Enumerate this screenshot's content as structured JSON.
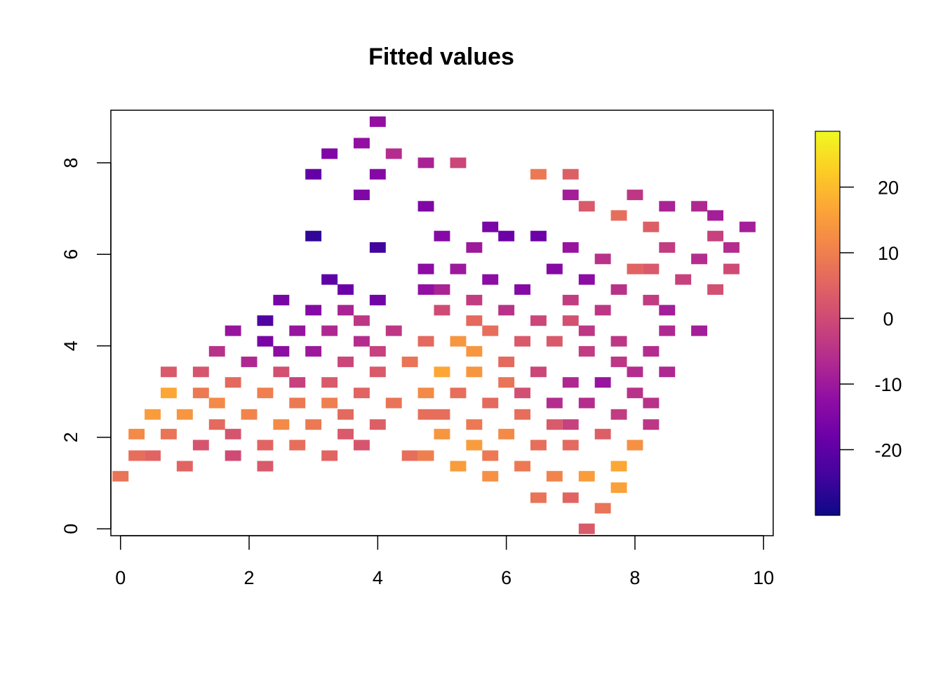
{
  "chart_data": {
    "type": "heatmap",
    "title": "Fitted values",
    "xlabel": "",
    "ylabel": "",
    "xlim": [
      -0.15,
      10.15
    ],
    "ylim": [
      -0.15,
      9.15
    ],
    "x_ticks": [
      "0",
      "2",
      "4",
      "6",
      "8",
      "10"
    ],
    "y_ticks": [
      "0",
      "2",
      "4",
      "6",
      "8"
    ],
    "cell_width": 0.25,
    "cell_height": 0.23,
    "colorbar": {
      "min": -30,
      "max": 28.5,
      "ticks": [
        "20",
        "10",
        "0",
        "-10",
        "-20"
      ],
      "palette": "plasma"
    },
    "cells": [
      {
        "x": 0.0,
        "y": 1.15,
        "value": 8
      },
      {
        "x": 0.25,
        "y": 1.6,
        "value": 7
      },
      {
        "x": 0.5,
        "y": 1.6,
        "value": 5
      },
      {
        "x": 0.25,
        "y": 2.07,
        "value": 12
      },
      {
        "x": 0.5,
        "y": 2.5,
        "value": 15
      },
      {
        "x": 0.75,
        "y": 2.07,
        "value": 8
      },
      {
        "x": 0.75,
        "y": 2.97,
        "value": 17
      },
      {
        "x": 0.75,
        "y": 3.43,
        "value": 3
      },
      {
        "x": 1.0,
        "y": 1.37,
        "value": 5
      },
      {
        "x": 1.0,
        "y": 2.5,
        "value": 14
      },
      {
        "x": 1.25,
        "y": 1.83,
        "value": 2
      },
      {
        "x": 1.25,
        "y": 2.97,
        "value": 9
      },
      {
        "x": 1.25,
        "y": 3.43,
        "value": 2
      },
      {
        "x": 1.5,
        "y": 2.28,
        "value": 6
      },
      {
        "x": 1.5,
        "y": 2.75,
        "value": 12
      },
      {
        "x": 1.5,
        "y": 3.88,
        "value": -5
      },
      {
        "x": 1.75,
        "y": 1.6,
        "value": 0
      },
      {
        "x": 1.75,
        "y": 2.07,
        "value": 2
      },
      {
        "x": 1.75,
        "y": 3.2,
        "value": 6
      },
      {
        "x": 1.75,
        "y": 4.33,
        "value": -11
      },
      {
        "x": 2.0,
        "y": 2.5,
        "value": 11
      },
      {
        "x": 2.0,
        "y": 3.65,
        "value": -7
      },
      {
        "x": 2.25,
        "y": 1.37,
        "value": 3
      },
      {
        "x": 2.25,
        "y": 1.83,
        "value": 5
      },
      {
        "x": 2.25,
        "y": 2.97,
        "value": 10
      },
      {
        "x": 2.25,
        "y": 4.1,
        "value": -16
      },
      {
        "x": 2.25,
        "y": 4.55,
        "value": -22
      },
      {
        "x": 2.5,
        "y": 2.28,
        "value": 12
      },
      {
        "x": 2.5,
        "y": 3.43,
        "value": 1
      },
      {
        "x": 2.5,
        "y": 3.88,
        "value": -13
      },
      {
        "x": 2.5,
        "y": 5.0,
        "value": -16
      },
      {
        "x": 2.75,
        "y": 1.83,
        "value": 7
      },
      {
        "x": 2.75,
        "y": 2.75,
        "value": 9
      },
      {
        "x": 2.75,
        "y": 3.2,
        "value": -2
      },
      {
        "x": 2.75,
        "y": 4.33,
        "value": -11
      },
      {
        "x": 3.0,
        "y": 2.28,
        "value": 9
      },
      {
        "x": 3.0,
        "y": 3.88,
        "value": -10
      },
      {
        "x": 3.0,
        "y": 4.78,
        "value": -14
      },
      {
        "x": 3.0,
        "y": 6.4,
        "value": -26
      },
      {
        "x": 3.0,
        "y": 7.75,
        "value": -19
      },
      {
        "x": 3.25,
        "y": 1.6,
        "value": 5
      },
      {
        "x": 3.25,
        "y": 2.75,
        "value": 10
      },
      {
        "x": 3.25,
        "y": 3.2,
        "value": 3
      },
      {
        "x": 3.25,
        "y": 4.33,
        "value": -7
      },
      {
        "x": 3.25,
        "y": 5.45,
        "value": -20
      },
      {
        "x": 3.25,
        "y": 8.2,
        "value": -15
      },
      {
        "x": 3.5,
        "y": 2.07,
        "value": 3
      },
      {
        "x": 3.5,
        "y": 2.5,
        "value": 6
      },
      {
        "x": 3.5,
        "y": 3.65,
        "value": -1
      },
      {
        "x": 3.5,
        "y": 4.78,
        "value": -8
      },
      {
        "x": 3.5,
        "y": 5.23,
        "value": -18
      },
      {
        "x": 3.75,
        "y": 1.83,
        "value": 2
      },
      {
        "x": 3.75,
        "y": 2.97,
        "value": 5
      },
      {
        "x": 3.75,
        "y": 4.1,
        "value": -6
      },
      {
        "x": 3.75,
        "y": 4.55,
        "value": -4
      },
      {
        "x": 3.75,
        "y": 7.3,
        "value": -15
      },
      {
        "x": 3.75,
        "y": 8.43,
        "value": -12
      },
      {
        "x": 4.0,
        "y": 2.28,
        "value": 4
      },
      {
        "x": 4.0,
        "y": 3.43,
        "value": 3
      },
      {
        "x": 4.0,
        "y": 3.88,
        "value": -2
      },
      {
        "x": 4.0,
        "y": 5.0,
        "value": -17
      },
      {
        "x": 4.0,
        "y": 6.15,
        "value": -24
      },
      {
        "x": 4.0,
        "y": 7.75,
        "value": -14
      },
      {
        "x": 4.0,
        "y": 8.9,
        "value": -12
      },
      {
        "x": 4.25,
        "y": 2.75,
        "value": 8
      },
      {
        "x": 4.25,
        "y": 4.33,
        "value": -4
      },
      {
        "x": 4.25,
        "y": 8.2,
        "value": -6
      },
      {
        "x": 4.5,
        "y": 1.6,
        "value": 7
      },
      {
        "x": 4.5,
        "y": 3.65,
        "value": 8
      },
      {
        "x": 4.75,
        "y": 1.6,
        "value": 10
      },
      {
        "x": 4.75,
        "y": 2.5,
        "value": 7
      },
      {
        "x": 4.75,
        "y": 2.97,
        "value": 12
      },
      {
        "x": 4.75,
        "y": 4.1,
        "value": 6
      },
      {
        "x": 4.75,
        "y": 5.23,
        "value": -12
      },
      {
        "x": 4.75,
        "y": 5.68,
        "value": -13
      },
      {
        "x": 4.75,
        "y": 7.05,
        "value": -15
      },
      {
        "x": 4.75,
        "y": 8.0,
        "value": -8
      },
      {
        "x": 5.0,
        "y": 2.07,
        "value": 14
      },
      {
        "x": 5.0,
        "y": 2.5,
        "value": 7
      },
      {
        "x": 5.0,
        "y": 3.43,
        "value": 17
      },
      {
        "x": 5.0,
        "y": 4.78,
        "value": 0
      },
      {
        "x": 5.0,
        "y": 5.23,
        "value": -8
      },
      {
        "x": 5.0,
        "y": 6.4,
        "value": -14
      },
      {
        "x": 5.25,
        "y": 1.37,
        "value": 15
      },
      {
        "x": 5.25,
        "y": 2.97,
        "value": 7
      },
      {
        "x": 5.25,
        "y": 4.1,
        "value": 14
      },
      {
        "x": 5.25,
        "y": 5.68,
        "value": -10
      },
      {
        "x": 5.25,
        "y": 8.0,
        "value": -1
      },
      {
        "x": 5.5,
        "y": 1.83,
        "value": 15
      },
      {
        "x": 5.5,
        "y": 2.28,
        "value": 9
      },
      {
        "x": 5.5,
        "y": 3.43,
        "value": 14
      },
      {
        "x": 5.5,
        "y": 3.88,
        "value": 14
      },
      {
        "x": 5.5,
        "y": 4.55,
        "value": 6
      },
      {
        "x": 5.5,
        "y": 5.0,
        "value": -3
      },
      {
        "x": 5.5,
        "y": 6.15,
        "value": -10
      },
      {
        "x": 5.75,
        "y": 1.15,
        "value": 13
      },
      {
        "x": 5.75,
        "y": 1.6,
        "value": 9
      },
      {
        "x": 5.75,
        "y": 2.75,
        "value": 6
      },
      {
        "x": 5.75,
        "y": 4.33,
        "value": 7
      },
      {
        "x": 5.75,
        "y": 5.45,
        "value": -13
      },
      {
        "x": 5.75,
        "y": 6.6,
        "value": -16
      },
      {
        "x": 6.0,
        "y": 2.07,
        "value": 12
      },
      {
        "x": 6.0,
        "y": 3.2,
        "value": 8
      },
      {
        "x": 6.0,
        "y": 3.65,
        "value": 6
      },
      {
        "x": 6.0,
        "y": 4.78,
        "value": -5
      },
      {
        "x": 6.0,
        "y": 6.4,
        "value": -18
      },
      {
        "x": 6.25,
        "y": 1.37,
        "value": 9
      },
      {
        "x": 6.25,
        "y": 2.5,
        "value": 7
      },
      {
        "x": 6.25,
        "y": 2.97,
        "value": 1
      },
      {
        "x": 6.25,
        "y": 4.1,
        "value": 3
      },
      {
        "x": 6.25,
        "y": 5.23,
        "value": -14
      },
      {
        "x": 6.5,
        "y": 0.68,
        "value": 8
      },
      {
        "x": 6.5,
        "y": 1.83,
        "value": 7
      },
      {
        "x": 6.5,
        "y": 3.43,
        "value": -1
      },
      {
        "x": 6.5,
        "y": 4.55,
        "value": -1
      },
      {
        "x": 6.5,
        "y": 6.4,
        "value": -18
      },
      {
        "x": 6.5,
        "y": 7.75,
        "value": 9
      },
      {
        "x": 6.75,
        "y": 1.15,
        "value": 11
      },
      {
        "x": 6.75,
        "y": 2.28,
        "value": 3
      },
      {
        "x": 6.75,
        "y": 2.75,
        "value": -6
      },
      {
        "x": 6.75,
        "y": 4.1,
        "value": 3
      },
      {
        "x": 6.75,
        "y": 5.68,
        "value": -14
      },
      {
        "x": 7.0,
        "y": 0.68,
        "value": 5
      },
      {
        "x": 7.0,
        "y": 1.83,
        "value": 6
      },
      {
        "x": 7.0,
        "y": 2.28,
        "value": -2
      },
      {
        "x": 7.0,
        "y": 3.2,
        "value": -7
      },
      {
        "x": 7.0,
        "y": 4.55,
        "value": 1
      },
      {
        "x": 7.0,
        "y": 5.0,
        "value": -3
      },
      {
        "x": 7.0,
        "y": 6.15,
        "value": -11
      },
      {
        "x": 7.0,
        "y": 7.3,
        "value": -9
      },
      {
        "x": 7.0,
        "y": 7.75,
        "value": 4
      },
      {
        "x": 7.25,
        "y": 0.0,
        "value": 3
      },
      {
        "x": 7.25,
        "y": 1.15,
        "value": 15
      },
      {
        "x": 7.25,
        "y": 2.75,
        "value": -6
      },
      {
        "x": 7.25,
        "y": 3.88,
        "value": -3
      },
      {
        "x": 7.25,
        "y": 4.33,
        "value": -4
      },
      {
        "x": 7.25,
        "y": 5.45,
        "value": -13
      },
      {
        "x": 7.25,
        "y": 7.05,
        "value": 3
      },
      {
        "x": 7.5,
        "y": 0.45,
        "value": 8
      },
      {
        "x": 7.5,
        "y": 2.07,
        "value": 4
      },
      {
        "x": 7.5,
        "y": 3.2,
        "value": -11
      },
      {
        "x": 7.5,
        "y": 4.78,
        "value": -4
      },
      {
        "x": 7.5,
        "y": 5.9,
        "value": -5
      },
      {
        "x": 7.75,
        "y": 0.9,
        "value": 16
      },
      {
        "x": 7.75,
        "y": 1.37,
        "value": 17
      },
      {
        "x": 7.75,
        "y": 2.5,
        "value": -3
      },
      {
        "x": 7.75,
        "y": 3.65,
        "value": -4
      },
      {
        "x": 7.75,
        "y": 4.1,
        "value": -4
      },
      {
        "x": 7.75,
        "y": 5.23,
        "value": -5
      },
      {
        "x": 7.75,
        "y": 6.85,
        "value": 7
      },
      {
        "x": 8.0,
        "y": 1.83,
        "value": 13
      },
      {
        "x": 8.0,
        "y": 2.97,
        "value": -5
      },
      {
        "x": 8.0,
        "y": 3.43,
        "value": -6
      },
      {
        "x": 8.0,
        "y": 5.68,
        "value": 5
      },
      {
        "x": 8.0,
        "y": 7.3,
        "value": -4
      },
      {
        "x": 8.25,
        "y": 2.28,
        "value": -4
      },
      {
        "x": 8.25,
        "y": 2.75,
        "value": -5
      },
      {
        "x": 8.25,
        "y": 3.88,
        "value": -6
      },
      {
        "x": 8.25,
        "y": 5.0,
        "value": -3
      },
      {
        "x": 8.25,
        "y": 5.68,
        "value": 3
      },
      {
        "x": 8.25,
        "y": 6.6,
        "value": 4
      },
      {
        "x": 8.5,
        "y": 3.43,
        "value": -7
      },
      {
        "x": 8.5,
        "y": 4.33,
        "value": -7
      },
      {
        "x": 8.5,
        "y": 4.78,
        "value": -9
      },
      {
        "x": 8.5,
        "y": 6.15,
        "value": -3
      },
      {
        "x": 8.5,
        "y": 7.05,
        "value": -8
      },
      {
        "x": 8.75,
        "y": 5.45,
        "value": -2
      },
      {
        "x": 9.0,
        "y": 4.33,
        "value": -9
      },
      {
        "x": 9.0,
        "y": 5.9,
        "value": -6
      },
      {
        "x": 9.0,
        "y": 7.05,
        "value": -7
      },
      {
        "x": 9.25,
        "y": 5.23,
        "value": 1
      },
      {
        "x": 9.25,
        "y": 6.4,
        "value": -2
      },
      {
        "x": 9.25,
        "y": 6.85,
        "value": -9
      },
      {
        "x": 9.5,
        "y": 5.68,
        "value": 0
      },
      {
        "x": 9.5,
        "y": 6.15,
        "value": -6
      },
      {
        "x": 9.75,
        "y": 6.6,
        "value": -9
      }
    ]
  }
}
